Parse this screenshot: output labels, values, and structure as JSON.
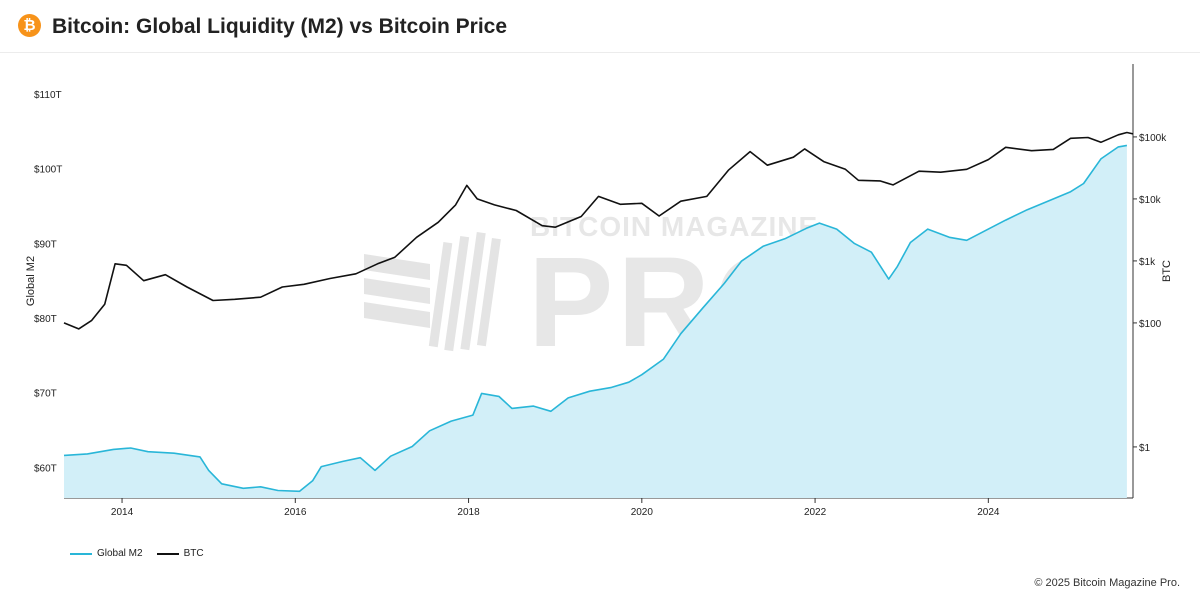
{
  "header": {
    "title": "Bitcoin: Global Liquidity (M2) vs Bitcoin Price",
    "logo_glyph": "₿",
    "logo_color": "#f7931a"
  },
  "watermark": {
    "top_text": "BITCOIN MAGAZINE",
    "big_text": "PRO"
  },
  "footer": {
    "copyright": "© 2025 Bitcoin Magazine Pro."
  },
  "chart_data": {
    "type": "line",
    "title": "",
    "xlabel": "",
    "ylabel_left": "Global M2",
    "ylabel_right": "BTC",
    "x_ticks": [
      "2014",
      "2016",
      "2018",
      "2020",
      "2022",
      "2024"
    ],
    "x_range": [
      2013.33,
      2025.67
    ],
    "y_left_ticks": [
      {
        "value": 60,
        "label": "$60T"
      },
      {
        "value": 70,
        "label": "$70T"
      },
      {
        "value": 80,
        "label": "$80T"
      },
      {
        "value": 90,
        "label": "$90T"
      },
      {
        "value": 100,
        "label": "$100T"
      },
      {
        "value": 110,
        "label": "$110T"
      }
    ],
    "y_left_range": [
      55.9,
      114
    ],
    "y_right_scale": "log",
    "y_right_ticks": [
      {
        "value": 1,
        "label": "$1"
      },
      {
        "value": 100,
        "label": "$100"
      },
      {
        "value": 1000,
        "label": "$1k"
      },
      {
        "value": 10000,
        "label": "$10k"
      },
      {
        "value": 100000,
        "label": "$100k"
      }
    ],
    "y_right_range": [
      0.15,
      1500000
    ],
    "legend_position": "bottom-left",
    "grid": false,
    "series": [
      {
        "name": "Global M2",
        "axis": "left",
        "color": "#29b6d8",
        "fill": "#d2eff8",
        "points": [
          [
            2013.33,
            61.6
          ],
          [
            2013.6,
            61.8
          ],
          [
            2013.9,
            62.4
          ],
          [
            2014.1,
            62.6
          ],
          [
            2014.3,
            62.1
          ],
          [
            2014.6,
            61.9
          ],
          [
            2014.9,
            61.4
          ],
          [
            2015.0,
            59.6
          ],
          [
            2015.15,
            57.8
          ],
          [
            2015.4,
            57.2
          ],
          [
            2015.6,
            57.4
          ],
          [
            2015.8,
            56.9
          ],
          [
            2016.05,
            56.8
          ],
          [
            2016.2,
            58.2
          ],
          [
            2016.3,
            60.1
          ],
          [
            2016.55,
            60.8
          ],
          [
            2016.75,
            61.3
          ],
          [
            2016.92,
            59.6
          ],
          [
            2017.1,
            61.5
          ],
          [
            2017.35,
            62.8
          ],
          [
            2017.55,
            64.9
          ],
          [
            2017.8,
            66.2
          ],
          [
            2018.05,
            67.0
          ],
          [
            2018.15,
            69.9
          ],
          [
            2018.35,
            69.5
          ],
          [
            2018.5,
            67.9
          ],
          [
            2018.75,
            68.2
          ],
          [
            2018.95,
            67.5
          ],
          [
            2019.15,
            69.3
          ],
          [
            2019.4,
            70.2
          ],
          [
            2019.65,
            70.7
          ],
          [
            2019.85,
            71.4
          ],
          [
            2020.0,
            72.4
          ],
          [
            2020.25,
            74.5
          ],
          [
            2020.45,
            77.9
          ],
          [
            2020.7,
            81.3
          ],
          [
            2020.95,
            84.6
          ],
          [
            2021.15,
            87.6
          ],
          [
            2021.4,
            89.6
          ],
          [
            2021.65,
            90.6
          ],
          [
            2021.9,
            92.0
          ],
          [
            2022.05,
            92.7
          ],
          [
            2022.25,
            91.9
          ],
          [
            2022.45,
            90.0
          ],
          [
            2022.65,
            88.8
          ],
          [
            2022.85,
            85.2
          ],
          [
            2022.95,
            86.9
          ],
          [
            2023.1,
            90.1
          ],
          [
            2023.3,
            91.9
          ],
          [
            2023.55,
            90.8
          ],
          [
            2023.75,
            90.4
          ],
          [
            2023.95,
            91.6
          ],
          [
            2024.2,
            93.1
          ],
          [
            2024.45,
            94.5
          ],
          [
            2024.7,
            95.7
          ],
          [
            2024.95,
            96.9
          ],
          [
            2025.1,
            98.0
          ],
          [
            2025.3,
            101.3
          ],
          [
            2025.5,
            102.9
          ],
          [
            2025.6,
            103.1
          ]
        ]
      },
      {
        "name": "BTC",
        "axis": "right",
        "color": "#111111",
        "points": [
          [
            2013.33,
            100
          ],
          [
            2013.5,
            80
          ],
          [
            2013.65,
            110
          ],
          [
            2013.8,
            200
          ],
          [
            2013.92,
            900
          ],
          [
            2014.05,
            850
          ],
          [
            2014.25,
            480
          ],
          [
            2014.5,
            600
          ],
          [
            2014.75,
            380
          ],
          [
            2015.05,
            230
          ],
          [
            2015.3,
            240
          ],
          [
            2015.6,
            260
          ],
          [
            2015.85,
            380
          ],
          [
            2016.1,
            420
          ],
          [
            2016.4,
            520
          ],
          [
            2016.7,
            620
          ],
          [
            2016.95,
            900
          ],
          [
            2017.15,
            1150
          ],
          [
            2017.4,
            2400
          ],
          [
            2017.65,
            4200
          ],
          [
            2017.85,
            8000
          ],
          [
            2017.98,
            16500
          ],
          [
            2018.1,
            10000
          ],
          [
            2018.3,
            8000
          ],
          [
            2018.55,
            6500
          ],
          [
            2018.85,
            3700
          ],
          [
            2019.0,
            3500
          ],
          [
            2019.3,
            5200
          ],
          [
            2019.5,
            11000
          ],
          [
            2019.75,
            8200
          ],
          [
            2020.0,
            8500
          ],
          [
            2020.2,
            5300
          ],
          [
            2020.45,
            9200
          ],
          [
            2020.75,
            11000
          ],
          [
            2021.0,
            29000
          ],
          [
            2021.25,
            58000
          ],
          [
            2021.45,
            35000
          ],
          [
            2021.75,
            47000
          ],
          [
            2021.88,
            64000
          ],
          [
            2022.1,
            40000
          ],
          [
            2022.35,
            30000
          ],
          [
            2022.5,
            20000
          ],
          [
            2022.75,
            19500
          ],
          [
            2022.9,
            16800
          ],
          [
            2023.2,
            28000
          ],
          [
            2023.45,
            27000
          ],
          [
            2023.75,
            30000
          ],
          [
            2024.0,
            43000
          ],
          [
            2024.2,
            68000
          ],
          [
            2024.5,
            60000
          ],
          [
            2024.75,
            63000
          ],
          [
            2024.95,
            95000
          ],
          [
            2025.15,
            98000
          ],
          [
            2025.3,
            82000
          ],
          [
            2025.5,
            108000
          ],
          [
            2025.6,
            118000
          ],
          [
            2025.67,
            112000
          ]
        ]
      }
    ]
  }
}
